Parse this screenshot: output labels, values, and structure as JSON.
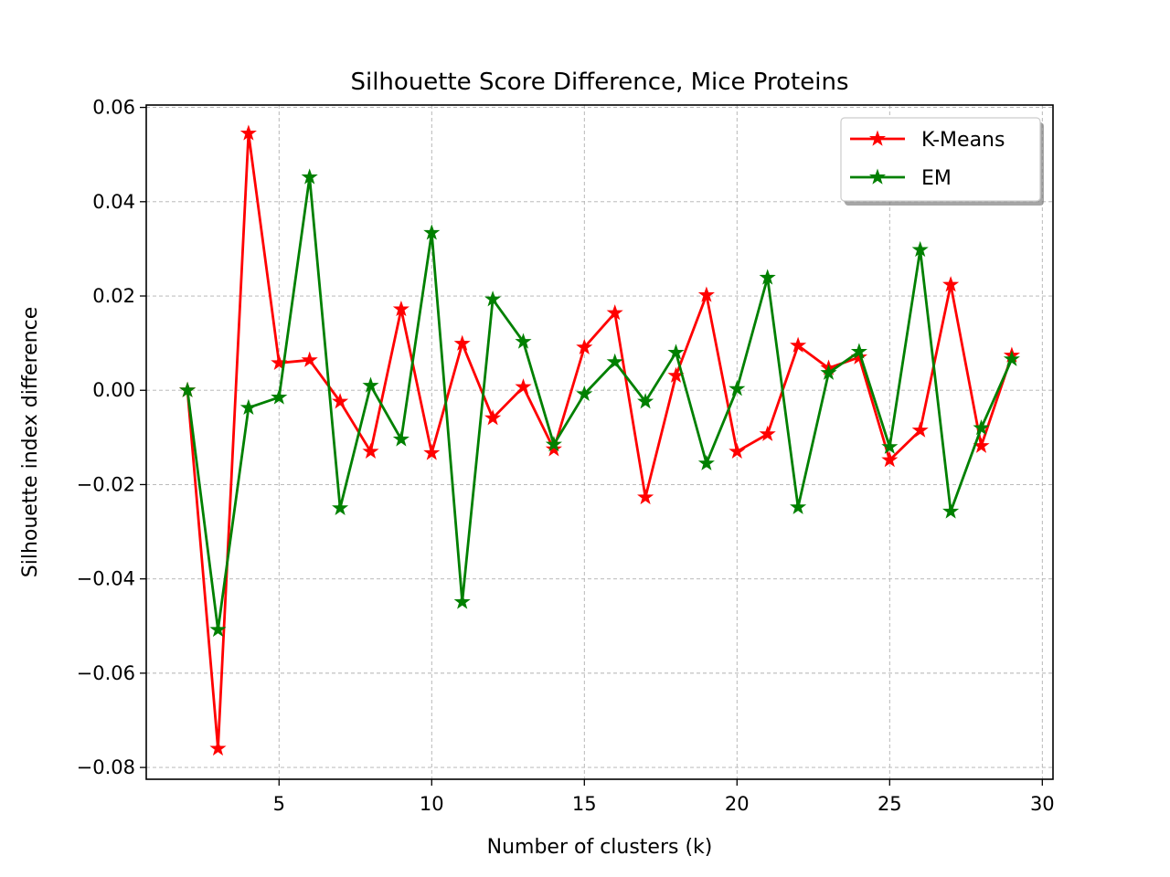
{
  "chart_data": {
    "type": "line",
    "title": "Silhouette Score Difference, Mice Proteins",
    "xlabel": "Number of clusters (k)",
    "ylabel": "Silhouette index difference",
    "xlim": [
      0.65,
      30.35
    ],
    "ylim": [
      -0.0825,
      0.0605
    ],
    "xticks": [
      5,
      10,
      15,
      20,
      25,
      30
    ],
    "xtick_labels": [
      "5",
      "10",
      "15",
      "20",
      "25",
      "30"
    ],
    "yticks": [
      0.06,
      0.04,
      0.02,
      0.0,
      -0.02,
      -0.04,
      -0.06,
      -0.08
    ],
    "ytick_labels": [
      "0.06",
      "0.04",
      "0.02",
      "0.00",
      "−0.02",
      "−0.04",
      "−0.06",
      "−0.08"
    ],
    "grid": true,
    "legend_position": "top-right",
    "x": [
      2,
      3,
      4,
      5,
      6,
      7,
      8,
      9,
      10,
      11,
      12,
      13,
      14,
      15,
      16,
      17,
      18,
      19,
      20,
      21,
      22,
      23,
      24,
      25,
      26,
      27,
      28,
      29
    ],
    "series": [
      {
        "name": "K-Means",
        "color": "#ff0000",
        "marker": "star",
        "values": [
          0.0,
          -0.076,
          0.0545,
          0.0058,
          0.0064,
          -0.0024,
          -0.013,
          0.0172,
          -0.0133,
          0.0099,
          -0.0059,
          0.0007,
          -0.0125,
          0.0091,
          0.0164,
          -0.0227,
          0.0031,
          0.0202,
          -0.013,
          -0.0093,
          0.0095,
          0.0047,
          0.007,
          -0.0148,
          -0.0085,
          0.0224,
          -0.0118,
          0.0074
        ]
      },
      {
        "name": "EM",
        "color": "#008000",
        "marker": "star",
        "values": [
          0.0,
          -0.0508,
          -0.0037,
          -0.0015,
          0.0452,
          -0.025,
          0.001,
          -0.0104,
          0.0334,
          -0.0449,
          0.0193,
          0.0103,
          -0.0115,
          -0.0008,
          0.006,
          -0.0024,
          0.008,
          -0.0155,
          0.0003,
          0.0239,
          -0.0248,
          0.0037,
          0.0082,
          -0.012,
          0.0298,
          -0.0257,
          -0.008,
          0.0066
        ]
      }
    ]
  }
}
